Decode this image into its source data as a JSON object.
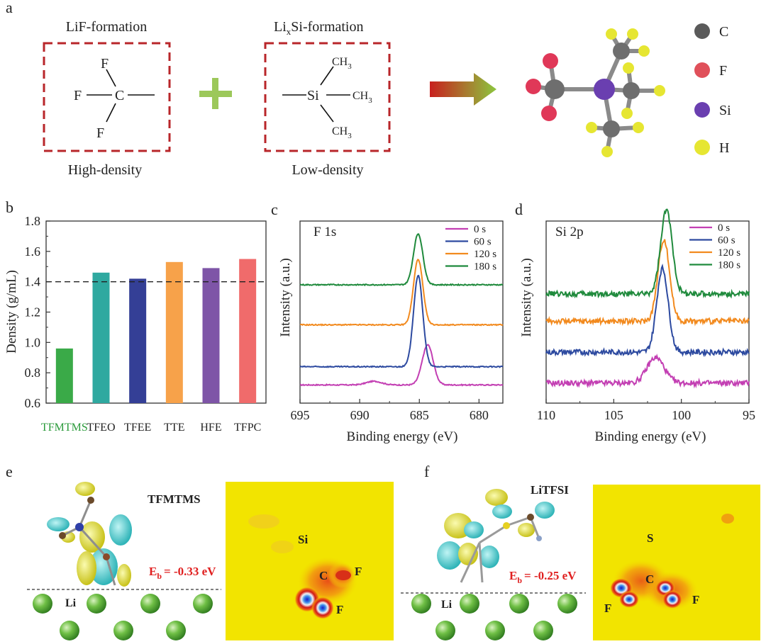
{
  "panel_a": {
    "letter": "a",
    "box1": {
      "title": "LiF-formation",
      "caption": "High-density",
      "atoms": {
        "f_top": "F",
        "f_left": "F",
        "f_bottom": "F",
        "carbon": "C"
      }
    },
    "box2": {
      "title_main": "Li",
      "title_sub": "x",
      "title_rest": "Si-formation",
      "caption": "Low-density",
      "atoms": {
        "si": "Si",
        "ch3": "CH",
        "three": "3"
      }
    },
    "legend": [
      {
        "label": "C",
        "color": "#5a5a5a"
      },
      {
        "label": "F",
        "color": "#e0505a"
      },
      {
        "label": "Si",
        "color": "#6a3fb0"
      },
      {
        "label": "H",
        "color": "#e6e632"
      }
    ]
  },
  "panel_b": {
    "letter": "b",
    "ylabel": "Density (g/mL)",
    "tfmtms_color": "#2a9a3a"
  },
  "panel_c": {
    "letter": "c",
    "annotation": "F 1s",
    "xlabel": "Binding energy (eV)",
    "ylabel": "Intensity (a.u.)"
  },
  "panel_d": {
    "letter": "d",
    "annotation": "Si 2p",
    "xlabel": "Binding energy (eV)",
    "ylabel": "Intensity (a.u.)"
  },
  "panel_e": {
    "letter": "e",
    "molecule": "TFMTMS",
    "eb_main": "E",
    "eb_sub": "b",
    "eb_value": "= -0.33 eV",
    "li": "Li",
    "map_labels": {
      "si": "Si",
      "c": "C",
      "f1": "F",
      "f2": "F"
    }
  },
  "panel_f": {
    "letter": "f",
    "molecule": "LiTFSI",
    "eb_main": "E",
    "eb_sub": "b",
    "eb_value": "= -0.25 eV",
    "li": "Li",
    "map_labels": {
      "s": "S",
      "c": "C",
      "f1": "F",
      "f2": "F"
    }
  },
  "chart_data": [
    {
      "type": "bar",
      "categories": [
        "TFMTMS",
        "TFEO",
        "TFEE",
        "TTE",
        "HFE",
        "TFPC"
      ],
      "values": [
        0.96,
        1.46,
        1.42,
        1.53,
        1.49,
        1.55
      ],
      "colors": [
        "#3aaa48",
        "#2fa9a0",
        "#343f96",
        "#f7a24a",
        "#7e55a7",
        "#f06b6b"
      ],
      "reference_line": 1.4,
      "xlabel": "",
      "ylabel": "Density (g/mL)",
      "ylim": [
        0.6,
        1.8
      ],
      "yticks": [
        "0.6",
        "0.8",
        "1.0",
        "1.2",
        "1.4",
        "1.6",
        "1.8"
      ]
    },
    {
      "type": "line",
      "title": "F 1s",
      "xlabel": "Binding energy (eV)",
      "ylabel": "Intensity (a.u.)",
      "xlim": [
        695,
        678
      ],
      "xticks": [
        "695",
        "690",
        "685",
        "680"
      ],
      "series": [
        {
          "name": "0 s",
          "color": "#c33fb3",
          "baseline": 0.1,
          "peaks": [
            {
              "x": 684.3,
              "h": 0.22,
              "w": 0.65
            },
            {
              "x": 688.8,
              "h": 0.02,
              "w": 0.9
            }
          ]
        },
        {
          "name": "60 s",
          "color": "#2d4aa0",
          "baseline": 0.2,
          "peaks": [
            {
              "x": 685.1,
              "h": 0.5,
              "w": 0.55
            }
          ]
        },
        {
          "name": "120 s",
          "color": "#f28a1e",
          "baseline": 0.43,
          "peaks": [
            {
              "x": 685.1,
              "h": 0.36,
              "w": 0.55
            }
          ]
        },
        {
          "name": "180 s",
          "color": "#1f8a3c",
          "baseline": 0.65,
          "peaks": [
            {
              "x": 685.1,
              "h": 0.28,
              "w": 0.55
            }
          ]
        }
      ]
    },
    {
      "type": "line",
      "title": "Si 2p",
      "xlabel": "Binding energy (eV)",
      "ylabel": "Intensity (a.u.)",
      "xlim": [
        110,
        95
      ],
      "xticks": [
        "110",
        "105",
        "100",
        "95"
      ],
      "series": [
        {
          "name": "0 s",
          "color": "#c33fb3",
          "baseline": 0.11,
          "peaks": [
            {
              "x": 101.9,
              "h": 0.14,
              "w": 0.9
            }
          ]
        },
        {
          "name": "60 s",
          "color": "#2d4aa0",
          "baseline": 0.28,
          "peaks": [
            {
              "x": 101.4,
              "h": 0.46,
              "w": 0.6
            }
          ]
        },
        {
          "name": "120 s",
          "color": "#f28a1e",
          "baseline": 0.45,
          "peaks": [
            {
              "x": 101.3,
              "h": 0.45,
              "w": 0.6
            }
          ]
        },
        {
          "name": "180 s",
          "color": "#1f8a3c",
          "baseline": 0.6,
          "peaks": [
            {
              "x": 101.1,
              "h": 0.46,
              "w": 0.6
            }
          ]
        }
      ]
    }
  ]
}
